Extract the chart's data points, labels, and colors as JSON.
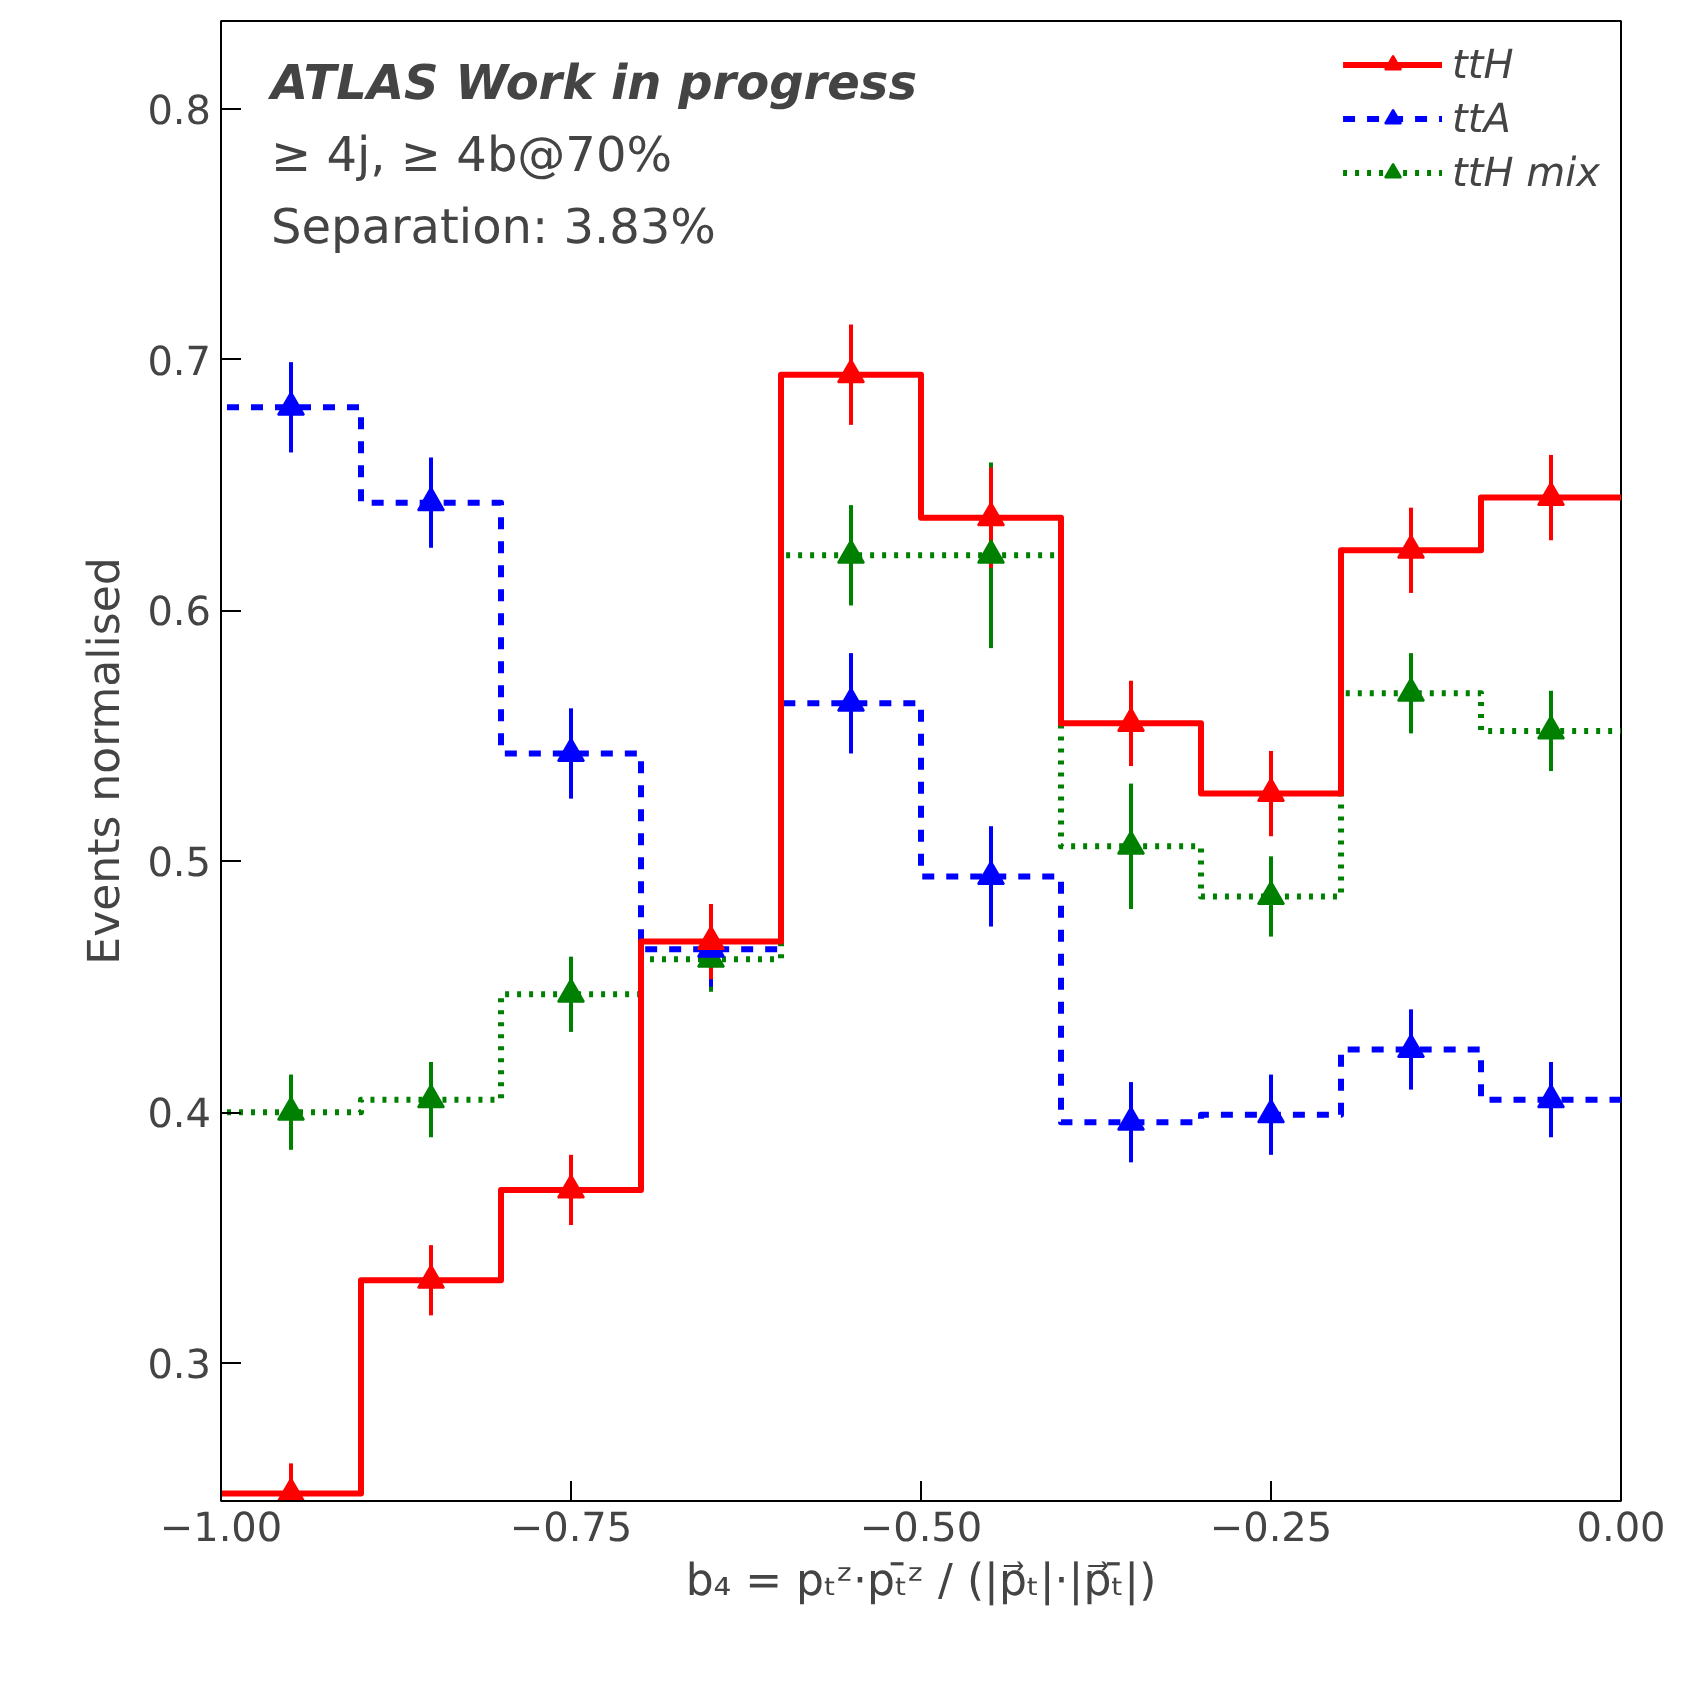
{
  "chart_data": {
    "type": "step",
    "xlabel": "b₄ = pₜᶻ·pₜ̄ᶻ / (|p⃗ₜ|·|p⃗ₜ̄|)",
    "ylabel": "Events normalised",
    "annotations": [
      "ATLAS Work in progress",
      "≥ 4j, ≥ 4b@70%",
      "Separation: 3.83%"
    ],
    "x": [
      -0.95,
      -0.85,
      -0.75,
      -0.65,
      -0.55,
      -0.45,
      -0.35,
      -0.25,
      -0.15,
      -0.05
    ],
    "xlim": [
      -1.0,
      0.0
    ],
    "ylim": [
      0.245,
      0.835
    ],
    "xticks": [
      {
        "value": -1.0,
        "label": "−1.00"
      },
      {
        "value": -0.75,
        "label": "−0.75"
      },
      {
        "value": -0.5,
        "label": "−0.50"
      },
      {
        "value": -0.25,
        "label": "−0.25"
      },
      {
        "value": 0.0,
        "label": "0.00"
      }
    ],
    "yticks": [
      0.3,
      0.4,
      0.5,
      0.6,
      0.7,
      0.8
    ],
    "legend": "top right",
    "grid": false,
    "marker": "triangle",
    "series": [
      {
        "name": "ttH",
        "color": "#ff0000",
        "line_style": "solid",
        "values": [
          0.248,
          0.333,
          0.369,
          0.468,
          0.694,
          0.637,
          0.555,
          0.527,
          0.624,
          0.645
        ],
        "errors": [
          0.012,
          0.014,
          0.014,
          0.015,
          0.02,
          0.02,
          0.017,
          0.017,
          0.017,
          0.017
        ]
      },
      {
        "name": "ttA",
        "color": "#0000ff",
        "line_style": "dashed",
        "values": [
          0.681,
          0.643,
          0.543,
          0.465,
          0.563,
          0.494,
          0.396,
          0.399,
          0.425,
          0.405
        ],
        "errors": [
          0.018,
          0.018,
          0.018,
          0.015,
          0.02,
          0.02,
          0.016,
          0.016,
          0.016,
          0.015
        ]
      },
      {
        "name": "ttH mix",
        "color": "#008000",
        "line_style": "dotted",
        "values": [
          0.4,
          0.405,
          0.447,
          0.461,
          0.622,
          0.622,
          0.506,
          0.486,
          0.567,
          0.552
        ],
        "errors": [
          0.015,
          0.015,
          0.015,
          0.013,
          0.02,
          0.037,
          0.025,
          0.016,
          0.016,
          0.016
        ]
      }
    ]
  }
}
